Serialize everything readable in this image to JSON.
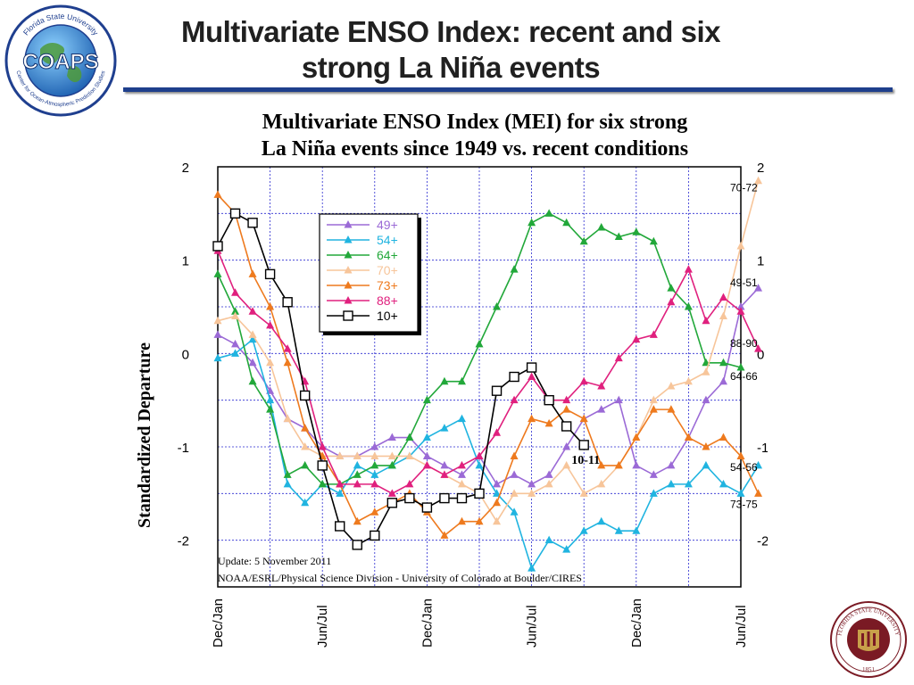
{
  "slide": {
    "title_line1": "Multivariate ENSO Index: recent and six",
    "title_line2": "strong La Niña events",
    "logo_left": {
      "big_text": "COAPS",
      "ring_top": "Florida State University",
      "ring_bottom": "Center for Ocean-Atmospheric Prediction Studies"
    },
    "logo_right": {
      "ring_top": "FLORIDA STATE UNIVERSITY",
      "year": "1851"
    }
  },
  "chart_data": {
    "type": "line",
    "title_line1": "Multivariate ENSO Index (MEI) for six strong",
    "title_line2": "La Niña events since 1949 vs. recent conditions",
    "ylabel": "Standardized Departure",
    "ylim": [
      -2.5,
      2
    ],
    "yticks": [
      2,
      1,
      0,
      -1,
      -2
    ],
    "ytick_labels": [
      "2",
      "1",
      "0",
      "-1",
      "-2"
    ],
    "xlim": [
      0,
      30
    ],
    "xticks": [
      0,
      6,
      12,
      18,
      24,
      30
    ],
    "xtick_labels": [
      "Dec/Jan",
      "Jun/Jul",
      "Dec/Jan",
      "Jun/Jul",
      "Dec/Jan",
      "Jun/Jul"
    ],
    "grid": true,
    "legend_placement": "upper-left",
    "legend_title_color_note": "",
    "series": [
      {
        "name": "49+",
        "color": "#9b6ad6",
        "marker": "triangle",
        "end_label": "49-51",
        "values": [
          0.2,
          0.1,
          -0.1,
          -0.4,
          -0.7,
          -0.8,
          -1.0,
          -1.1,
          -1.1,
          -1.0,
          -0.9,
          -0.9,
          -1.1,
          -1.2,
          -1.3,
          -1.1,
          -1.4,
          -1.3,
          -1.4,
          -1.3,
          -1.0,
          -0.7,
          -0.6,
          -0.5,
          -1.2,
          -1.3,
          -1.2,
          -0.9,
          -0.5,
          -0.3,
          0.5,
          0.7
        ]
      },
      {
        "name": "54+",
        "color": "#20b4e0",
        "marker": "triangle",
        "end_label": "54-56",
        "values": [
          -0.05,
          0.0,
          0.15,
          -0.5,
          -1.4,
          -1.6,
          -1.4,
          -1.5,
          -1.2,
          -1.3,
          -1.2,
          -1.1,
          -0.9,
          -0.8,
          -0.7,
          -1.2,
          -1.5,
          -1.7,
          -2.3,
          -2.0,
          -2.1,
          -1.9,
          -1.8,
          -1.9,
          -1.9,
          -1.5,
          -1.4,
          -1.4,
          -1.2,
          -1.4,
          -1.5,
          -1.2
        ]
      },
      {
        "name": "64+",
        "color": "#22a83a",
        "marker": "triangle",
        "end_label": "64-66",
        "values": [
          0.85,
          0.45,
          -0.3,
          -0.6,
          -1.3,
          -1.2,
          -1.4,
          -1.4,
          -1.3,
          -1.2,
          -1.2,
          -0.9,
          -0.5,
          -0.3,
          -0.3,
          0.1,
          0.5,
          0.9,
          1.4,
          1.5,
          1.4,
          1.2,
          1.35,
          1.25,
          1.3,
          1.2,
          0.7,
          0.5,
          -0.1,
          -0.1,
          -0.15
        ]
      },
      {
        "name": "70+",
        "color": "#f7c59a",
        "marker": "triangle",
        "end_label": "70-72",
        "values": [
          0.35,
          0.4,
          0.2,
          -0.1,
          -0.7,
          -1.0,
          -1.1,
          -1.1,
          -1.1,
          -1.1,
          -1.1,
          -1.1,
          -1.2,
          -1.3,
          -1.4,
          -1.5,
          -1.8,
          -1.5,
          -1.5,
          -1.4,
          -1.2,
          -1.5,
          -1.4,
          -1.2,
          -0.9,
          -0.5,
          -0.35,
          -0.3,
          -0.2,
          0.4,
          1.15,
          1.85
        ]
      },
      {
        "name": "73+",
        "color": "#ee7a1e",
        "marker": "triangle",
        "end_label": "73-75",
        "values": [
          1.7,
          1.5,
          0.85,
          0.5,
          -0.1,
          -0.8,
          -1.1,
          -1.4,
          -1.8,
          -1.7,
          -1.6,
          -1.5,
          -1.7,
          -1.95,
          -1.8,
          -1.8,
          -1.6,
          -1.1,
          -0.7,
          -0.75,
          -0.6,
          -0.7,
          -1.2,
          -1.2,
          -0.9,
          -0.6,
          -0.6,
          -0.9,
          -1.0,
          -0.9,
          -1.1,
          -1.5
        ]
      },
      {
        "name": "88+",
        "color": "#e0207e",
        "marker": "triangle",
        "end_label": "88-90",
        "values": [
          1.1,
          0.65,
          0.45,
          0.3,
          0.05,
          -0.3,
          -1.0,
          -1.4,
          -1.4,
          -1.4,
          -1.5,
          -1.4,
          -1.2,
          -1.3,
          -1.2,
          -1.1,
          -0.85,
          -0.5,
          -0.25,
          -0.5,
          -0.5,
          -0.3,
          -0.35,
          -0.05,
          0.15,
          0.2,
          0.55,
          0.9,
          0.35,
          0.6,
          0.45,
          0.05
        ]
      },
      {
        "name": "10+",
        "color": "#000000",
        "marker": "square-open",
        "end_label": "10-11",
        "values": [
          1.15,
          1.5,
          1.4,
          0.85,
          0.55,
          -0.45,
          -1.2,
          -1.85,
          -2.05,
          -1.95,
          -1.6,
          -1.55,
          -1.65,
          -1.55,
          -1.55,
          -1.5,
          -0.4,
          -0.25,
          -0.15,
          -0.5,
          -0.78,
          -0.98
        ]
      }
    ],
    "annotations": {
      "update": "Update: 5 November 2011",
      "credit": "NOAA/ESRL/Physical Science Division - University of Colorado at Boulder/CIRES",
      "series_label_10": "10-11"
    }
  }
}
